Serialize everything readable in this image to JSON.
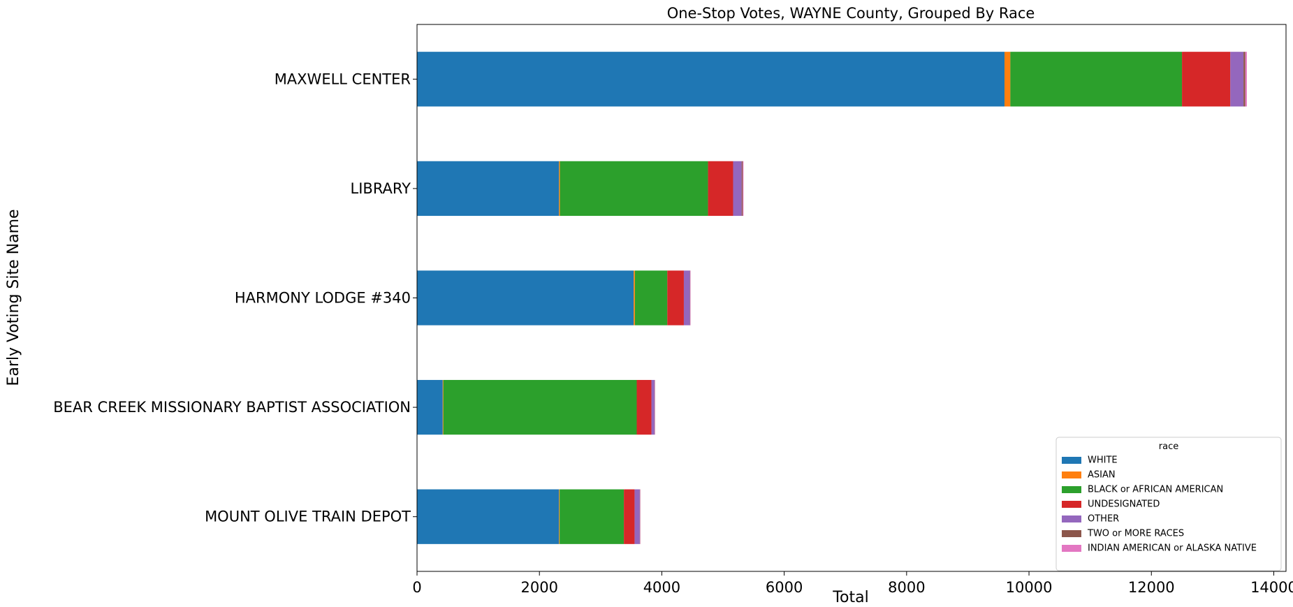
{
  "chart_data": {
    "type": "bar",
    "orientation": "horizontal",
    "stacked": true,
    "title": "One-Stop Votes, WAYNE County, Grouped By Race",
    "xlabel": "Total",
    "ylabel": "Early Voting Site Name",
    "xlim": [
      0,
      14200
    ],
    "xticks": [
      0,
      2000,
      4000,
      6000,
      8000,
      10000,
      12000,
      14000
    ],
    "xtick_labels": [
      "0",
      "2000",
      "4000",
      "6000",
      "8000",
      "10000",
      "12000",
      "14000"
    ],
    "grid": false,
    "legend": {
      "title": "race",
      "position": "bottom-right"
    },
    "categories": [
      "MAXWELL CENTER",
      "LIBRARY",
      "HARMONY LODGE #340",
      "BEAR CREEK MISSIONARY BAPTIST ASSOCIATION",
      "MOUNT OLIVE TRAIN DEPOT"
    ],
    "series": [
      {
        "name": "WHITE",
        "color": "#1f77b4",
        "values": [
          9600,
          2320,
          3540,
          420,
          2320
        ]
      },
      {
        "name": "ASIAN",
        "color": "#ff7f0e",
        "values": [
          95,
          15,
          20,
          10,
          10
        ]
      },
      {
        "name": "BLACK or AFRICAN AMERICAN",
        "color": "#2ca02c",
        "values": [
          2805,
          2420,
          530,
          3160,
          1050
        ]
      },
      {
        "name": "UNDESIGNATED",
        "color": "#d62728",
        "values": [
          790,
          410,
          270,
          240,
          175
        ]
      },
      {
        "name": "OTHER",
        "color": "#9467bd",
        "values": [
          215,
          140,
          100,
          50,
          85
        ]
      },
      {
        "name": "TWO or MORE RACES",
        "color": "#8c564b",
        "values": [
          30,
          18,
          5,
          5,
          5
        ]
      },
      {
        "name": "INDIAN AMERICAN or ALASKA NATIVE",
        "color": "#e377c2",
        "values": [
          25,
          12,
          5,
          5,
          5
        ]
      }
    ]
  }
}
